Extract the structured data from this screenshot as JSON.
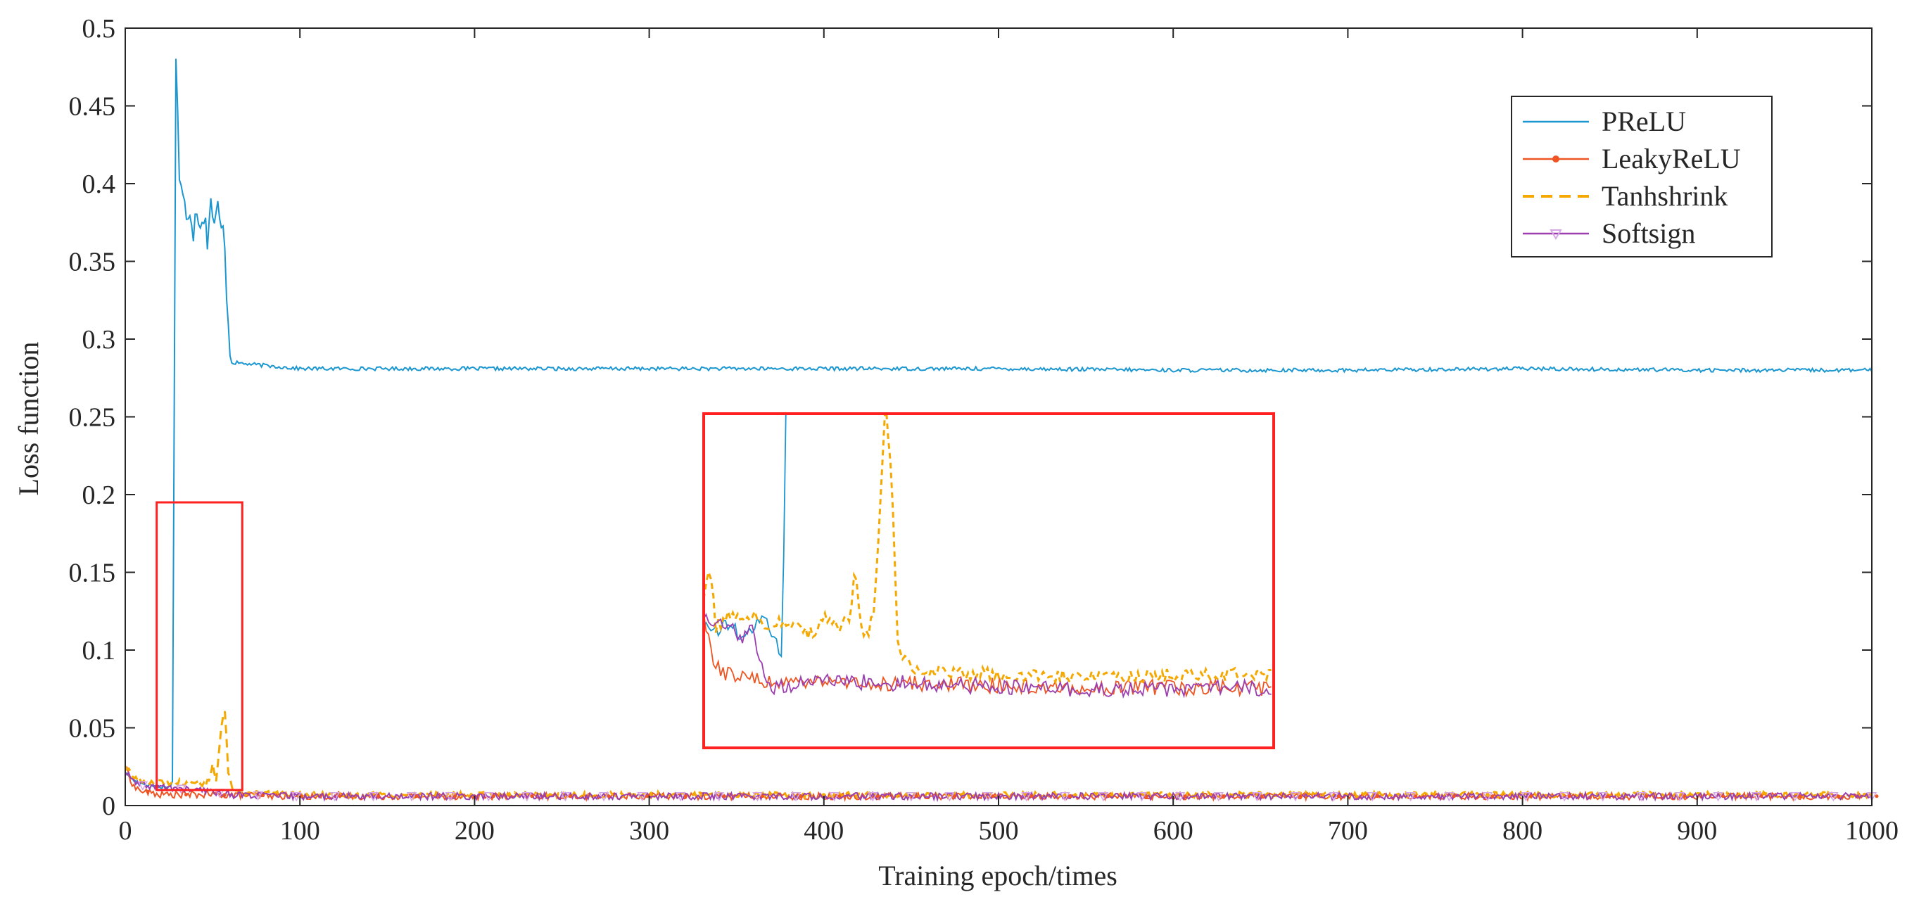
{
  "chart_data": {
    "type": "line",
    "xlabel": "Training epoch/times",
    "ylabel": "Loss function",
    "xlim": [
      0,
      1000
    ],
    "ylim": [
      0,
      0.5
    ],
    "xticks": [
      0,
      100,
      200,
      300,
      400,
      500,
      600,
      700,
      800,
      900,
      1000
    ],
    "xtick_labels": [
      "0",
      "100",
      "200",
      "300",
      "400",
      "500",
      "600",
      "700",
      "800",
      "900",
      "1000"
    ],
    "yticks": [
      0,
      0.05,
      0.1,
      0.15,
      0.2,
      0.25,
      0.3,
      0.35,
      0.4,
      0.45,
      0.5
    ],
    "ytick_labels": [
      "0",
      "0.05",
      "0.1",
      "0.15",
      "0.2",
      "0.25",
      "0.3",
      "0.35",
      "0.4",
      "0.45",
      "0.5"
    ],
    "grid": false,
    "box": true,
    "legend_position": "top-right",
    "series": [
      {
        "name": "PReLU",
        "color": "#1a96d0",
        "style": "solid",
        "marker": "none",
        "points": [
          [
            0,
            0.021
          ],
          [
            5,
            0.016
          ],
          [
            10,
            0.014
          ],
          [
            15,
            0.013
          ],
          [
            20,
            0.012
          ],
          [
            25,
            0.012
          ],
          [
            27,
            0.015
          ],
          [
            29,
            0.48
          ],
          [
            30,
            0.45
          ],
          [
            31,
            0.4
          ],
          [
            33,
            0.39
          ],
          [
            35,
            0.38
          ],
          [
            37,
            0.385
          ],
          [
            39,
            0.37
          ],
          [
            41,
            0.385
          ],
          [
            43,
            0.375
          ],
          [
            45,
            0.38
          ],
          [
            47,
            0.365
          ],
          [
            49,
            0.39
          ],
          [
            51,
            0.37
          ],
          [
            53,
            0.385
          ],
          [
            55,
            0.37
          ],
          [
            57,
            0.365
          ],
          [
            58,
            0.33
          ],
          [
            60,
            0.29
          ],
          [
            61,
            0.285
          ],
          [
            70,
            0.284
          ],
          [
            80,
            0.283
          ],
          [
            100,
            0.281
          ],
          [
            150,
            0.281
          ],
          [
            200,
            0.281
          ],
          [
            300,
            0.281
          ],
          [
            400,
            0.281
          ],
          [
            500,
            0.281
          ],
          [
            600,
            0.28
          ],
          [
            700,
            0.28
          ],
          [
            800,
            0.281
          ],
          [
            900,
            0.28
          ],
          [
            1000,
            0.28
          ]
        ]
      },
      {
        "name": "LeakyReLU",
        "color": "#ee5522",
        "style": "solid",
        "marker": "dot",
        "points": [
          [
            0,
            0.025
          ],
          [
            5,
            0.012
          ],
          [
            10,
            0.009
          ],
          [
            15,
            0.008
          ],
          [
            20,
            0.007
          ],
          [
            30,
            0.007
          ],
          [
            50,
            0.007
          ],
          [
            100,
            0.006
          ],
          [
            200,
            0.006
          ],
          [
            300,
            0.006
          ],
          [
            400,
            0.006
          ],
          [
            500,
            0.006
          ],
          [
            600,
            0.006
          ],
          [
            700,
            0.006
          ],
          [
            800,
            0.006
          ],
          [
            900,
            0.006
          ],
          [
            1000,
            0.006
          ]
        ]
      },
      {
        "name": "Tanhshrink",
        "color": "#f5a800",
        "style": "dashed",
        "marker": "none",
        "points": [
          [
            0,
            0.026
          ],
          [
            5,
            0.018
          ],
          [
            10,
            0.016
          ],
          [
            20,
            0.015
          ],
          [
            30,
            0.015
          ],
          [
            40,
            0.014
          ],
          [
            45,
            0.013
          ],
          [
            48,
            0.016
          ],
          [
            50,
            0.028
          ],
          [
            52,
            0.014
          ],
          [
            55,
            0.05
          ],
          [
            57,
            0.062
          ],
          [
            59,
            0.02
          ],
          [
            62,
            0.01
          ],
          [
            70,
            0.008
          ],
          [
            100,
            0.007
          ],
          [
            200,
            0.007
          ],
          [
            300,
            0.007
          ],
          [
            400,
            0.007
          ],
          [
            500,
            0.007
          ],
          [
            600,
            0.007
          ],
          [
            700,
            0.007
          ],
          [
            800,
            0.007
          ],
          [
            900,
            0.007
          ],
          [
            1000,
            0.007
          ]
        ]
      },
      {
        "name": "Softsign",
        "color": "#9b3fb0",
        "style": "solid",
        "marker": "triangle-down",
        "points": [
          [
            0,
            0.022
          ],
          [
            5,
            0.015
          ],
          [
            10,
            0.013
          ],
          [
            20,
            0.012
          ],
          [
            30,
            0.011
          ],
          [
            40,
            0.01
          ],
          [
            50,
            0.009
          ],
          [
            60,
            0.007
          ],
          [
            100,
            0.006
          ],
          [
            200,
            0.006
          ],
          [
            300,
            0.006
          ],
          [
            400,
            0.006
          ],
          [
            500,
            0.006
          ],
          [
            600,
            0.006
          ],
          [
            700,
            0.006
          ],
          [
            800,
            0.006
          ],
          [
            900,
            0.006
          ],
          [
            1000,
            0.006
          ]
        ]
      }
    ],
    "annotations": [
      {
        "type": "zoom-box",
        "x": [
          18,
          67
        ],
        "y": [
          0.01,
          0.195
        ],
        "color": "#ff2020"
      },
      {
        "type": "inset",
        "color": "#ff2020"
      }
    ]
  }
}
